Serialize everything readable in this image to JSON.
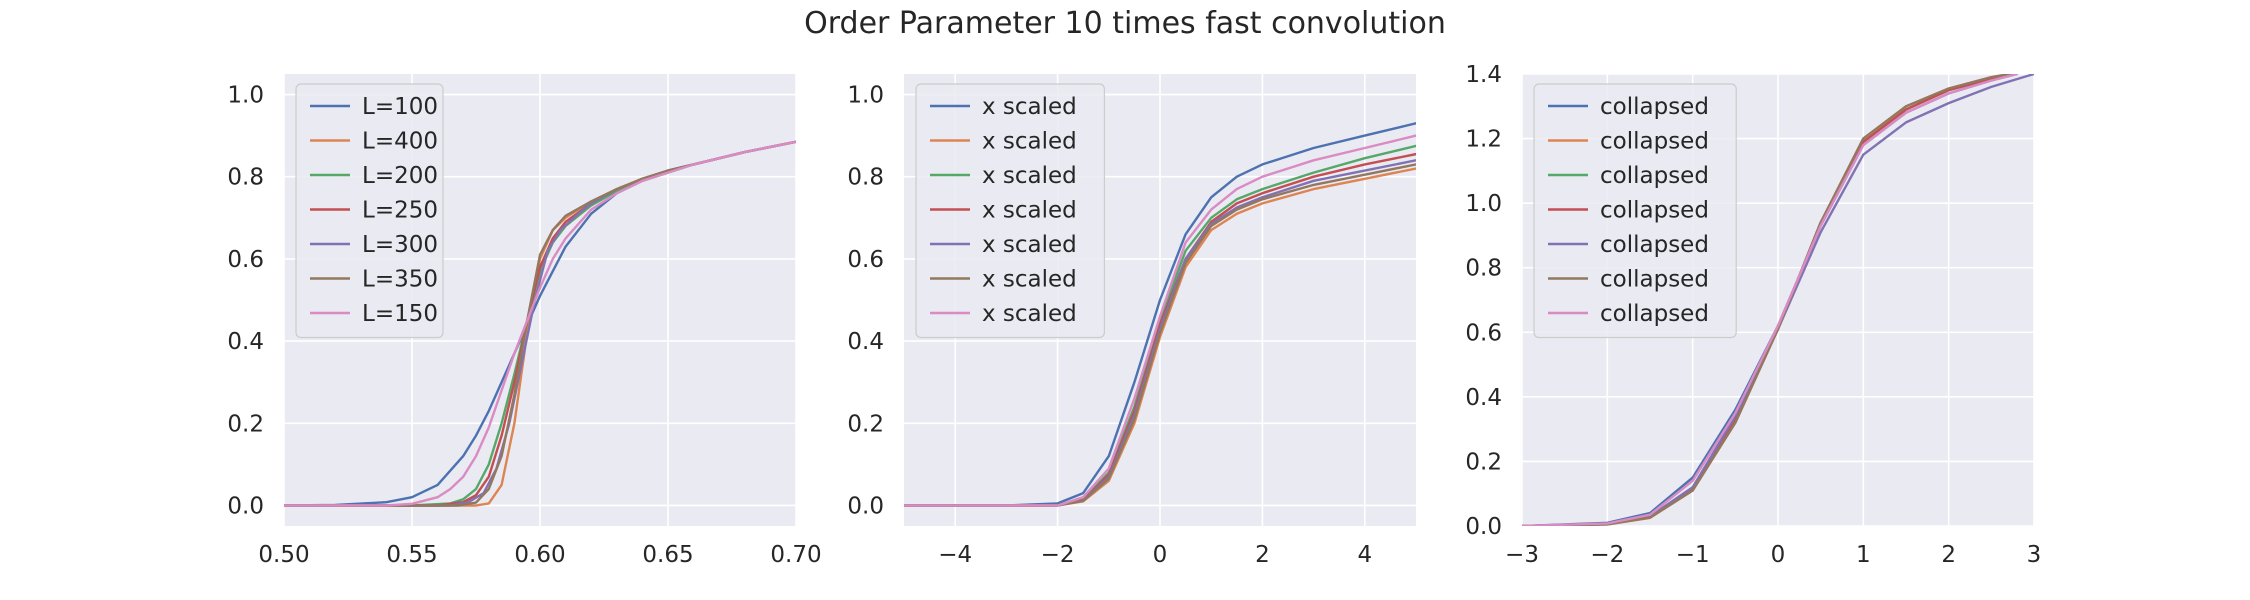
{
  "figure": {
    "title": "Order Parameter 10 times fast convolution"
  },
  "colors": {
    "blue": "#4c72b0",
    "orange": "#dd8452",
    "green": "#55a868",
    "red": "#c44e52",
    "purple": "#8172b3",
    "brown": "#937860",
    "pink": "#da8bc3",
    "panel_bg": "#eaeaf2",
    "grid": "#ffffff",
    "text": "#262626"
  },
  "chart_data": [
    {
      "type": "line",
      "title": "",
      "xlabel": "",
      "ylabel": "",
      "xlim": [
        0.5,
        0.7
      ],
      "ylim": [
        -0.05,
        1.05
      ],
      "xticks": [
        0.5,
        0.55,
        0.6,
        0.65,
        0.7
      ],
      "xtick_labels": [
        "0.50",
        "0.55",
        "0.60",
        "0.65",
        "0.70"
      ],
      "yticks": [
        0.0,
        0.2,
        0.4,
        0.6,
        0.8,
        1.0
      ],
      "ytick_labels": [
        "0.0",
        "0.2",
        "0.4",
        "0.6",
        "0.8",
        "1.0"
      ],
      "legend_position": "upper-left",
      "series": [
        {
          "name": "L=100",
          "color_key": "blue",
          "x": [
            0.5,
            0.52,
            0.54,
            0.55,
            0.56,
            0.57,
            0.575,
            0.58,
            0.585,
            0.59,
            0.595,
            0.6,
            0.605,
            0.61,
            0.62,
            0.63,
            0.64,
            0.65,
            0.66,
            0.68,
            0.7
          ],
          "y": [
            0.0,
            0.001,
            0.008,
            0.02,
            0.05,
            0.12,
            0.17,
            0.23,
            0.3,
            0.37,
            0.44,
            0.51,
            0.57,
            0.63,
            0.71,
            0.76,
            0.79,
            0.815,
            0.83,
            0.86,
            0.885
          ]
        },
        {
          "name": "L=400",
          "color_key": "orange",
          "x": [
            0.5,
            0.56,
            0.575,
            0.58,
            0.585,
            0.59,
            0.595,
            0.6,
            0.605,
            0.61,
            0.62,
            0.63,
            0.64,
            0.65,
            0.66,
            0.68,
            0.7
          ],
          "y": [
            0.0,
            0.0,
            0.0,
            0.005,
            0.05,
            0.2,
            0.42,
            0.6,
            0.67,
            0.7,
            0.74,
            0.77,
            0.795,
            0.815,
            0.83,
            0.86,
            0.885
          ]
        },
        {
          "name": "L=200",
          "color_key": "green",
          "x": [
            0.5,
            0.55,
            0.565,
            0.57,
            0.575,
            0.58,
            0.585,
            0.59,
            0.595,
            0.6,
            0.605,
            0.61,
            0.62,
            0.63,
            0.64,
            0.65,
            0.66,
            0.68,
            0.7
          ],
          "y": [
            0.0,
            0.0,
            0.005,
            0.015,
            0.04,
            0.1,
            0.2,
            0.32,
            0.45,
            0.57,
            0.64,
            0.68,
            0.73,
            0.765,
            0.79,
            0.81,
            0.83,
            0.86,
            0.885
          ]
        },
        {
          "name": "L=250",
          "color_key": "red",
          "x": [
            0.5,
            0.56,
            0.57,
            0.575,
            0.58,
            0.585,
            0.59,
            0.595,
            0.6,
            0.605,
            0.61,
            0.62,
            0.63,
            0.64,
            0.65,
            0.66,
            0.68,
            0.7
          ],
          "y": [
            0.0,
            0.0,
            0.008,
            0.025,
            0.07,
            0.17,
            0.3,
            0.45,
            0.58,
            0.65,
            0.69,
            0.735,
            0.77,
            0.795,
            0.815,
            0.83,
            0.86,
            0.885
          ]
        },
        {
          "name": "L=300",
          "color_key": "purple",
          "x": [
            0.5,
            0.565,
            0.572,
            0.578,
            0.583,
            0.588,
            0.593,
            0.598,
            0.603,
            0.608,
            0.615,
            0.62,
            0.63,
            0.64,
            0.65,
            0.66,
            0.68,
            0.7
          ],
          "y": [
            0.0,
            0.0,
            0.008,
            0.03,
            0.09,
            0.2,
            0.35,
            0.5,
            0.62,
            0.67,
            0.71,
            0.735,
            0.77,
            0.795,
            0.815,
            0.83,
            0.86,
            0.885
          ]
        },
        {
          "name": "L=350",
          "color_key": "brown",
          "x": [
            0.5,
            0.568,
            0.575,
            0.58,
            0.585,
            0.59,
            0.595,
            0.6,
            0.605,
            0.61,
            0.62,
            0.63,
            0.64,
            0.65,
            0.66,
            0.68,
            0.7
          ],
          "y": [
            0.0,
            0.0,
            0.007,
            0.04,
            0.12,
            0.27,
            0.45,
            0.61,
            0.67,
            0.705,
            0.74,
            0.77,
            0.795,
            0.815,
            0.83,
            0.86,
            0.885
          ]
        },
        {
          "name": "L=150",
          "color_key": "pink",
          "x": [
            0.5,
            0.54,
            0.55,
            0.56,
            0.565,
            0.57,
            0.575,
            0.58,
            0.585,
            0.59,
            0.595,
            0.6,
            0.605,
            0.61,
            0.62,
            0.63,
            0.64,
            0.65,
            0.66,
            0.68,
            0.7
          ],
          "y": [
            0.0,
            0.0,
            0.004,
            0.02,
            0.04,
            0.07,
            0.12,
            0.19,
            0.28,
            0.37,
            0.45,
            0.53,
            0.6,
            0.65,
            0.72,
            0.76,
            0.79,
            0.81,
            0.83,
            0.86,
            0.885
          ]
        }
      ]
    },
    {
      "type": "line",
      "title": "",
      "xlabel": "",
      "ylabel": "",
      "xlim": [
        -5,
        5
      ],
      "ylim": [
        -0.05,
        1.05
      ],
      "xticks": [
        -4,
        -2,
        0,
        2,
        4
      ],
      "xtick_labels": [
        "−4",
        "−2",
        "0",
        "2",
        "4"
      ],
      "yticks": [
        0.0,
        0.2,
        0.4,
        0.6,
        0.8,
        1.0
      ],
      "ytick_labels": [
        "0.0",
        "0.2",
        "0.4",
        "0.6",
        "0.8",
        "1.0"
      ],
      "legend_position": "upper-left",
      "series": [
        {
          "name": "x scaled",
          "color_key": "blue",
          "x": [
            -5,
            -3,
            -2,
            -1.5,
            -1,
            -0.5,
            0,
            0.5,
            1,
            1.5,
            2,
            3,
            4,
            5
          ],
          "y": [
            0.0,
            0.0,
            0.005,
            0.03,
            0.12,
            0.3,
            0.5,
            0.66,
            0.75,
            0.8,
            0.83,
            0.87,
            0.9,
            0.93
          ]
        },
        {
          "name": "x scaled",
          "color_key": "orange",
          "x": [
            -5,
            -2,
            -1.5,
            -1,
            -0.5,
            0,
            0.5,
            1,
            1.5,
            2,
            3,
            4,
            5
          ],
          "y": [
            0.0,
            0.0,
            0.01,
            0.06,
            0.2,
            0.41,
            0.58,
            0.67,
            0.71,
            0.735,
            0.77,
            0.795,
            0.82
          ]
        },
        {
          "name": "x scaled",
          "color_key": "green",
          "x": [
            -5,
            -2,
            -1.5,
            -1,
            -0.5,
            0,
            0.5,
            1,
            1.5,
            2,
            3,
            4,
            5
          ],
          "y": [
            0.0,
            0.0,
            0.015,
            0.08,
            0.24,
            0.45,
            0.62,
            0.7,
            0.745,
            0.77,
            0.81,
            0.845,
            0.875
          ]
        },
        {
          "name": "x scaled",
          "color_key": "red",
          "x": [
            -5,
            -2,
            -1.5,
            -1,
            -0.5,
            0,
            0.5,
            1,
            1.5,
            2,
            3,
            4,
            5
          ],
          "y": [
            0.0,
            0.0,
            0.013,
            0.075,
            0.23,
            0.44,
            0.6,
            0.69,
            0.735,
            0.76,
            0.8,
            0.83,
            0.855
          ]
        },
        {
          "name": "x scaled",
          "color_key": "purple",
          "x": [
            -5,
            -2,
            -1.5,
            -1,
            -0.5,
            0,
            0.5,
            1,
            1.5,
            2,
            3,
            4,
            5
          ],
          "y": [
            0.0,
            0.0,
            0.012,
            0.07,
            0.22,
            0.43,
            0.6,
            0.685,
            0.725,
            0.75,
            0.79,
            0.815,
            0.84
          ]
        },
        {
          "name": "x scaled",
          "color_key": "brown",
          "x": [
            -5,
            -2,
            -1.5,
            -1,
            -0.5,
            0,
            0.5,
            1,
            1.5,
            2,
            3,
            4,
            5
          ],
          "y": [
            0.0,
            0.0,
            0.011,
            0.065,
            0.21,
            0.42,
            0.59,
            0.68,
            0.72,
            0.745,
            0.78,
            0.805,
            0.83
          ]
        },
        {
          "name": "x scaled",
          "color_key": "pink",
          "x": [
            -5,
            -2,
            -1.5,
            -1,
            -0.5,
            0,
            0.5,
            1,
            1.5,
            2,
            3,
            4,
            5
          ],
          "y": [
            0.0,
            0.0,
            0.02,
            0.09,
            0.26,
            0.46,
            0.64,
            0.72,
            0.77,
            0.8,
            0.84,
            0.87,
            0.9
          ]
        }
      ]
    },
    {
      "type": "line",
      "title": "",
      "xlabel": "",
      "ylabel": "",
      "xlim": [
        -3,
        3
      ],
      "ylim": [
        0.0,
        1.4
      ],
      "xticks": [
        -3,
        -2,
        -1,
        0,
        1,
        2,
        3
      ],
      "xtick_labels": [
        "−3",
        "−2",
        "−1",
        "0",
        "1",
        "2",
        "3"
      ],
      "yticks": [
        0.0,
        0.2,
        0.4,
        0.6,
        0.8,
        1.0,
        1.2,
        1.4
      ],
      "ytick_labels": [
        "0.0",
        "0.2",
        "0.4",
        "0.6",
        "0.8",
        "1.0",
        "1.2",
        "1.4"
      ],
      "legend_position": "upper-left",
      "series": [
        {
          "name": "collapsed",
          "color_key": "blue",
          "x": [
            -3,
            -2,
            -1.5,
            -1,
            -0.5,
            0,
            0.5,
            1,
            1.5,
            2,
            2.5,
            2.8
          ],
          "y": [
            0.0,
            0.01,
            0.04,
            0.15,
            0.36,
            0.62,
            0.93,
            1.18,
            1.28,
            1.34,
            1.38,
            1.4
          ]
        },
        {
          "name": "collapsed",
          "color_key": "orange",
          "x": [
            -3,
            -2,
            -1.5,
            -1,
            -0.5,
            0,
            0.5,
            1,
            1.5,
            2,
            2.5,
            2.7
          ],
          "y": [
            0.0,
            0.005,
            0.025,
            0.11,
            0.32,
            0.61,
            0.94,
            1.2,
            1.3,
            1.355,
            1.39,
            1.4
          ]
        },
        {
          "name": "collapsed",
          "color_key": "green",
          "x": [
            -3,
            -2,
            -1.5,
            -1,
            -0.5,
            0,
            0.5,
            1,
            1.5,
            2,
            2.5,
            2.75
          ],
          "y": [
            0.0,
            0.006,
            0.028,
            0.12,
            0.33,
            0.61,
            0.94,
            1.19,
            1.29,
            1.35,
            1.385,
            1.4
          ]
        },
        {
          "name": "collapsed",
          "color_key": "red",
          "x": [
            -3,
            -2,
            -1.5,
            -1,
            -0.5,
            0,
            0.5,
            1,
            1.5,
            2,
            2.5,
            2.75
          ],
          "y": [
            0.0,
            0.006,
            0.027,
            0.115,
            0.33,
            0.61,
            0.94,
            1.19,
            1.29,
            1.35,
            1.385,
            1.4
          ]
        },
        {
          "name": "collapsed",
          "color_key": "purple",
          "x": [
            -3,
            -2,
            -1.5,
            -1,
            -0.5,
            0,
            0.5,
            1,
            1.5,
            2,
            2.5,
            3
          ],
          "y": [
            0.0,
            0.007,
            0.03,
            0.12,
            0.34,
            0.61,
            0.91,
            1.15,
            1.25,
            1.31,
            1.36,
            1.4
          ]
        },
        {
          "name": "collapsed",
          "color_key": "brown",
          "x": [
            -3,
            -2,
            -1.5,
            -1,
            -0.5,
            0,
            0.5,
            1,
            1.5,
            2,
            2.5,
            2.72
          ],
          "y": [
            0.0,
            0.005,
            0.026,
            0.11,
            0.32,
            0.61,
            0.94,
            1.2,
            1.3,
            1.355,
            1.39,
            1.4
          ]
        },
        {
          "name": "collapsed",
          "color_key": "pink",
          "x": [
            -3,
            -2,
            -1.5,
            -1,
            -0.5,
            0,
            0.5,
            1,
            1.5,
            2,
            2.5,
            2.8
          ],
          "y": [
            0.0,
            0.008,
            0.035,
            0.14,
            0.35,
            0.62,
            0.93,
            1.18,
            1.28,
            1.34,
            1.38,
            1.4
          ]
        }
      ]
    }
  ]
}
